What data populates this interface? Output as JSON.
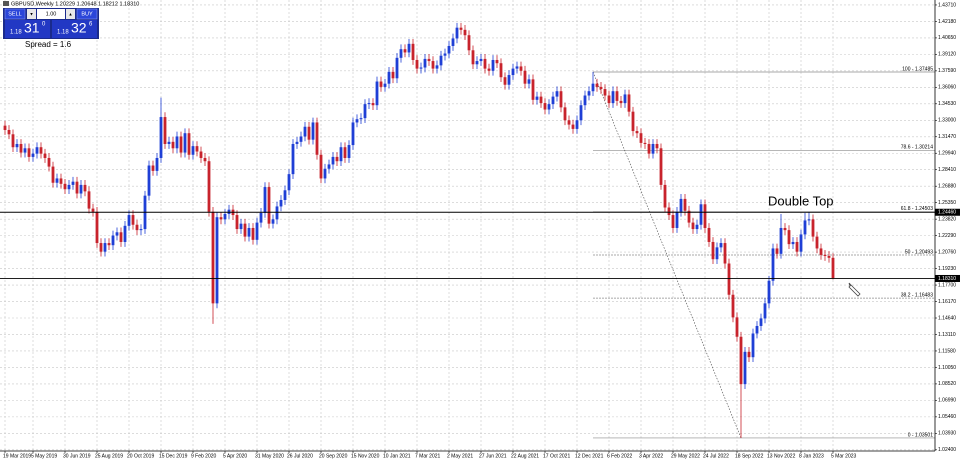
{
  "chart_data": {
    "type": "candlestick",
    "title": "GBPUSD,Weekly  1.20229 1.20648 1.18212 1.18310",
    "annotation": "Double Top",
    "up_color": "#1f3fd6",
    "down_color": "#c8232c",
    "grid": true,
    "categories": [
      "19 Mar 2019",
      null,
      null,
      null,
      null,
      null,
      null,
      "5 May 2019",
      null,
      null,
      null,
      null,
      null,
      null,
      null,
      "30 Jun 2019",
      null,
      null,
      null,
      null,
      null,
      null,
      null,
      "25 Aug 2019",
      null,
      null,
      null,
      null,
      null,
      null,
      null,
      "20 Oct 2019",
      null,
      null,
      null,
      null,
      null,
      null,
      null,
      "15 Dec 2019",
      null,
      null,
      null,
      null,
      null,
      null,
      null,
      "9 Feb 2020",
      null,
      null,
      null,
      null,
      null,
      null,
      null,
      "5 Apr 2020",
      null,
      null,
      null,
      null,
      null,
      null,
      null,
      "31 May 2020",
      null,
      null,
      null,
      null,
      null,
      null,
      null,
      "26 Jul 2020",
      null,
      null,
      null,
      null,
      null,
      null,
      null,
      "20 Sep 2020",
      null,
      null,
      null,
      null,
      null,
      null,
      null,
      "15 Nov 2020",
      null,
      null,
      null,
      null,
      null,
      null,
      null,
      "10 Jan 2021",
      null,
      null,
      null,
      null,
      null,
      null,
      null,
      "7 Mar 2021",
      null,
      null,
      null,
      null,
      null,
      null,
      null,
      "2 May 2021",
      null,
      null,
      null,
      null,
      null,
      null,
      null,
      "27 Jun 2021",
      null,
      null,
      null,
      null,
      null,
      null,
      null,
      "22 Aug 2021",
      null,
      null,
      null,
      null,
      null,
      null,
      null,
      "17 Oct 2021",
      null,
      null,
      null,
      null,
      null,
      null,
      null,
      "12 Dec 2021",
      null,
      null,
      null,
      null,
      null,
      null,
      null,
      "6 Feb 2022",
      null,
      null,
      null,
      null,
      null,
      null,
      null,
      "3 Apr 2022",
      null,
      null,
      null,
      null,
      null,
      null,
      null,
      "29 May 2022",
      null,
      null,
      null,
      null,
      null,
      null,
      null,
      "24 Jul 2022",
      null,
      null,
      null,
      null,
      null,
      null,
      null,
      "18 Sep 2022",
      null,
      null,
      null,
      null,
      null,
      null,
      null,
      "13 Nov 2022",
      null,
      null,
      null,
      null,
      null,
      null,
      null,
      "8 Jan 2023",
      null,
      null,
      null,
      null,
      null,
      null,
      null,
      "5 Mar 2023"
    ],
    "open": [
      1.325,
      1.321,
      1.317,
      1.305,
      1.308,
      1.3,
      1.304,
      1.296,
      1.299,
      1.305,
      1.299,
      1.295,
      1.287,
      1.272,
      1.276,
      1.271,
      1.266,
      1.27,
      1.273,
      1.262,
      1.27,
      1.264,
      1.248,
      1.245,
      1.216,
      1.208,
      1.216,
      1.214,
      1.223,
      1.226,
      1.217,
      1.232,
      1.242,
      1.233,
      1.228,
      1.229,
      1.26,
      1.288,
      1.283,
      1.295,
      1.333,
      1.308,
      1.31,
      1.304,
      1.315,
      1.3,
      1.318,
      1.298,
      1.306,
      1.301,
      1.295,
      1.292,
      1.245,
      1.16,
      1.24,
      1.238,
      1.243,
      1.247,
      1.242,
      1.229,
      1.234,
      1.222,
      1.23,
      1.219,
      1.235,
      1.244,
      1.268,
      1.234,
      1.238,
      1.25,
      1.256,
      1.265,
      1.28,
      1.308,
      1.31,
      1.315,
      1.324,
      1.312,
      1.328,
      1.298,
      1.276,
      1.285,
      1.289,
      1.296,
      1.292,
      1.305,
      1.295,
      1.307,
      1.328,
      1.331,
      1.332,
      1.345,
      1.346,
      1.344,
      1.366,
      1.361,
      1.364,
      1.375,
      1.369,
      1.388,
      1.396,
      1.393,
      1.401,
      1.386,
      1.378,
      1.379,
      1.387,
      1.385,
      1.378,
      1.381,
      1.39,
      1.392,
      1.399,
      1.406,
      1.416,
      1.414,
      1.409,
      1.395,
      1.382,
      1.385,
      1.387,
      1.378,
      1.376,
      1.386,
      1.383,
      1.37,
      1.363,
      1.372,
      1.378,
      1.38,
      1.376,
      1.364,
      1.368,
      1.349,
      1.352,
      1.346,
      1.34,
      1.345,
      1.352,
      1.357,
      1.342,
      1.33,
      1.326,
      1.322,
      1.33,
      1.344,
      1.353,
      1.357,
      1.364,
      1.361,
      1.359,
      1.353,
      1.346,
      1.357,
      1.348,
      1.346,
      1.354,
      1.338,
      1.32,
      1.318,
      1.309,
      1.308,
      1.299,
      1.308,
      1.304,
      1.27,
      1.249,
      1.242,
      1.23,
      1.245,
      1.257,
      1.246,
      1.235,
      1.229,
      1.233,
      1.252,
      1.23,
      1.217,
      1.201,
      1.212,
      1.216,
      1.197,
      1.168,
      1.147,
      1.129,
      1.085,
      1.115,
      1.11,
      1.132,
      1.139,
      1.146,
      1.16,
      1.181,
      1.211,
      1.206,
      1.23,
      1.228,
      1.215,
      1.217,
      1.208,
      1.224,
      1.237,
      1.238,
      1.222,
      1.211,
      1.205,
      1.204,
      1.2023
    ],
    "high": [
      1.3295,
      1.3255,
      1.3215,
      1.3125,
      1.3125,
      1.3085,
      1.3085,
      1.3035,
      1.3095,
      1.3095,
      1.3035,
      1.2995,
      1.2915,
      1.2805,
      1.2805,
      1.2755,
      1.2745,
      1.2775,
      1.2775,
      1.2745,
      1.2745,
      1.2685,
      1.2525,
      1.2495,
      1.2205,
      1.2205,
      1.2205,
      1.2275,
      1.2305,
      1.2305,
      1.2365,
      1.2465,
      1.2465,
      1.2375,
      1.2335,
      1.2645,
      1.2925,
      1.2925,
      1.2995,
      1.351,
      1.3375,
      1.3145,
      1.3145,
      1.3195,
      1.3195,
      1.3225,
      1.3225,
      1.3105,
      1.3105,
      1.3055,
      1.2995,
      1.2965,
      1.2495,
      1.2445,
      1.2445,
      1.2475,
      1.2515,
      1.2515,
      1.2465,
      1.2385,
      1.2385,
      1.2345,
      1.2345,
      1.2395,
      1.2485,
      1.2725,
      1.2725,
      1.2425,
      1.2545,
      1.2605,
      1.2695,
      1.2845,
      1.3125,
      1.3145,
      1.3195,
      1.3285,
      1.3285,
      1.3325,
      1.3325,
      1.3025,
      1.2895,
      1.2935,
      1.3005,
      1.3005,
      1.3095,
      1.3095,
      1.3115,
      1.3325,
      1.3355,
      1.3365,
      1.3495,
      1.3505,
      1.3505,
      1.3705,
      1.3705,
      1.3685,
      1.3795,
      1.3795,
      1.3925,
      1.4005,
      1.4005,
      1.4055,
      1.4055,
      1.3905,
      1.3835,
      1.3915,
      1.3915,
      1.3895,
      1.3855,
      1.3945,
      1.3965,
      1.4035,
      1.4105,
      1.4205,
      1.4205,
      1.4185,
      1.4135,
      1.3995,
      1.3895,
      1.3915,
      1.3915,
      1.3825,
      1.3905,
      1.3905,
      1.3875,
      1.3745,
      1.3765,
      1.3825,
      1.3845,
      1.3845,
      1.3805,
      1.3725,
      1.3725,
      1.3565,
      1.3565,
      1.3505,
      1.3495,
      1.3565,
      1.3615,
      1.3615,
      1.3465,
      1.3345,
      1.3305,
      1.3345,
      1.3485,
      1.3575,
      1.3615,
      1.3749,
      1.3685,
      1.3655,
      1.3635,
      1.3575,
      1.3615,
      1.3615,
      1.3525,
      1.3585,
      1.3585,
      1.3425,
      1.3245,
      1.3225,
      1.3135,
      1.3125,
      1.3125,
      1.3125,
      1.3085,
      1.2745,
      1.2535,
      1.2465,
      1.2495,
      1.2615,
      1.2615,
      1.2505,
      1.2395,
      1.2375,
      1.2565,
      1.2565,
      1.2345,
      1.2215,
      1.2165,
      1.2205,
      1.2205,
      1.2015,
      1.1725,
      1.1515,
      1.1335,
      1.1195,
      1.1195,
      1.1365,
      1.1435,
      1.1505,
      1.1645,
      1.1855,
      1.2155,
      1.2155,
      1.243,
      1.2345,
      1.2325,
      1.2215,
      1.2215,
      1.2285,
      1.244,
      1.2446,
      1.2425,
      1.2265,
      1.2155,
      1.2095,
      1.2085,
      1.2065
    ],
    "low": [
      1.3165,
      1.3125,
      1.3005,
      1.3005,
      1.2955,
      1.2955,
      1.2915,
      1.2915,
      1.2945,
      1.2945,
      1.2905,
      1.2825,
      1.2675,
      1.2675,
      1.2665,
      1.2615,
      1.2615,
      1.2655,
      1.2575,
      1.2575,
      1.2595,
      1.2435,
      1.2405,
      1.2115,
      1.2035,
      1.2035,
      1.2095,
      1.2095,
      1.2185,
      1.2125,
      1.2125,
      1.2275,
      1.2285,
      1.2235,
      1.2235,
      1.2245,
      1.2555,
      1.2785,
      1.2785,
      1.2905,
      1.3035,
      1.3035,
      1.2995,
      1.2995,
      1.2955,
      1.2955,
      1.2935,
      1.2935,
      1.2965,
      1.2905,
      1.2875,
      1.2405,
      1.141,
      1.1555,
      1.2335,
      1.2335,
      1.2385,
      1.2375,
      1.2245,
      1.2245,
      1.2175,
      1.2175,
      1.2145,
      1.2145,
      1.2305,
      1.2395,
      1.2295,
      1.2295,
      1.2335,
      1.2455,
      1.2515,
      1.2605,
      1.2755,
      1.3035,
      1.3055,
      1.3105,
      1.3075,
      1.3075,
      1.2935,
      1.2715,
      1.2715,
      1.2805,
      1.2845,
      1.2875,
      1.2875,
      1.2905,
      1.2905,
      1.3025,
      1.3235,
      1.3265,
      1.3275,
      1.3405,
      1.3395,
      1.3395,
      1.3565,
      1.3565,
      1.3595,
      1.3645,
      1.3645,
      1.3835,
      1.3885,
      1.3885,
      1.3815,
      1.3735,
      1.3735,
      1.3745,
      1.3805,
      1.3735,
      1.3735,
      1.3765,
      1.3855,
      1.3875,
      1.3945,
      1.4015,
      1.4095,
      1.4045,
      1.3905,
      1.3775,
      1.3775,
      1.3805,
      1.3735,
      1.3715,
      1.3715,
      1.3785,
      1.3655,
      1.3585,
      1.3585,
      1.3675,
      1.3735,
      1.3715,
      1.3595,
      1.3595,
      1.3445,
      1.3445,
      1.3415,
      1.3355,
      1.3355,
      1.3405,
      1.3475,
      1.3375,
      1.3255,
      1.3215,
      1.3175,
      1.3175,
      1.3255,
      1.3395,
      1.3485,
      1.3525,
      1.3565,
      1.3545,
      1.3485,
      1.3415,
      1.3415,
      1.3435,
      1.3415,
      1.3415,
      1.3335,
      1.3155,
      1.3135,
      1.3045,
      1.3035,
      1.2945,
      1.2945,
      1.2995,
      1.2655,
      1.2445,
      1.2375,
      1.2255,
      1.2255,
      1.2405,
      1.2415,
      1.2305,
      1.2245,
      1.2245,
      1.2285,
      1.2255,
      1.2125,
      1.1965,
      1.1965,
      1.2075,
      1.1925,
      1.1635,
      1.1425,
      1.1245,
      1.035,
      1.0805,
      1.1055,
      1.1055,
      1.1275,
      1.1345,
      1.1415,
      1.1555,
      1.1765,
      1.2015,
      1.2015,
      1.2235,
      1.2105,
      1.2105,
      1.2035,
      1.2035,
      1.2195,
      1.2325,
      1.2175,
      1.2065,
      1.2005,
      1.1995,
      1.1978,
      1.1821
    ],
    "close": [
      1.321,
      1.317,
      1.305,
      1.308,
      1.3,
      1.304,
      1.296,
      1.299,
      1.305,
      1.299,
      1.295,
      1.287,
      1.272,
      1.276,
      1.271,
      1.266,
      1.27,
      1.273,
      1.262,
      1.27,
      1.264,
      1.248,
      1.245,
      1.216,
      1.208,
      1.216,
      1.214,
      1.223,
      1.226,
      1.217,
      1.232,
      1.242,
      1.233,
      1.228,
      1.229,
      1.26,
      1.288,
      1.283,
      1.295,
      1.333,
      1.308,
      1.31,
      1.304,
      1.315,
      1.3,
      1.318,
      1.298,
      1.306,
      1.301,
      1.295,
      1.292,
      1.245,
      1.16,
      1.24,
      1.238,
      1.243,
      1.247,
      1.242,
      1.229,
      1.234,
      1.222,
      1.23,
      1.219,
      1.235,
      1.244,
      1.268,
      1.234,
      1.238,
      1.25,
      1.256,
      1.265,
      1.28,
      1.308,
      1.31,
      1.315,
      1.324,
      1.312,
      1.328,
      1.298,
      1.276,
      1.285,
      1.289,
      1.296,
      1.292,
      1.305,
      1.295,
      1.307,
      1.328,
      1.331,
      1.332,
      1.345,
      1.346,
      1.344,
      1.366,
      1.361,
      1.364,
      1.375,
      1.369,
      1.388,
      1.396,
      1.393,
      1.401,
      1.386,
      1.378,
      1.379,
      1.387,
      1.385,
      1.378,
      1.381,
      1.39,
      1.392,
      1.399,
      1.406,
      1.416,
      1.414,
      1.409,
      1.395,
      1.382,
      1.385,
      1.387,
      1.378,
      1.376,
      1.386,
      1.383,
      1.37,
      1.363,
      1.372,
      1.378,
      1.38,
      1.376,
      1.364,
      1.368,
      1.349,
      1.352,
      1.346,
      1.34,
      1.345,
      1.352,
      1.357,
      1.342,
      1.33,
      1.326,
      1.322,
      1.33,
      1.344,
      1.353,
      1.357,
      1.364,
      1.361,
      1.359,
      1.353,
      1.346,
      1.357,
      1.348,
      1.346,
      1.354,
      1.338,
      1.32,
      1.318,
      1.309,
      1.308,
      1.299,
      1.308,
      1.304,
      1.27,
      1.249,
      1.242,
      1.23,
      1.245,
      1.257,
      1.246,
      1.235,
      1.229,
      1.233,
      1.252,
      1.23,
      1.217,
      1.201,
      1.212,
      1.216,
      1.197,
      1.168,
      1.147,
      1.129,
      1.085,
      1.115,
      1.11,
      1.132,
      1.139,
      1.146,
      1.16,
      1.181,
      1.211,
      1.206,
      1.23,
      1.228,
      1.215,
      1.217,
      1.208,
      1.224,
      1.237,
      1.238,
      1.222,
      1.211,
      1.205,
      1.204,
      1.2023,
      1.1831
    ],
    "ylim": [
      1.0229,
      1.4417
    ],
    "yticks": [
      {
        "value": 1.4371,
        "label": "1.43710"
      },
      {
        "value": 1.4218,
        "label": "1.42180"
      },
      {
        "value": 1.4065,
        "label": "1.40650"
      },
      {
        "value": 1.3912,
        "label": "1.39120"
      },
      {
        "value": 1.3759,
        "label": "1.37590"
      },
      {
        "value": 1.3606,
        "label": "1.36060"
      },
      {
        "value": 1.3453,
        "label": "1.34530"
      },
      {
        "value": 1.33,
        "label": "1.33000"
      },
      {
        "value": 1.3147,
        "label": "1.31470"
      },
      {
        "value": 1.2994,
        "label": "1.29940"
      },
      {
        "value": 1.2841,
        "label": "1.28410"
      },
      {
        "value": 1.2688,
        "label": "1.26880"
      },
      {
        "value": 1.2535,
        "label": "1.25350"
      },
      {
        "value": 1.2382,
        "label": "1.23820"
      },
      {
        "value": 1.2229,
        "label": "1.22290"
      },
      {
        "value": 1.2076,
        "label": "1.20760"
      },
      {
        "value": 1.1923,
        "label": "1.19230"
      },
      {
        "value": 1.177,
        "label": "1.17700"
      },
      {
        "value": 1.1617,
        "label": "1.16170"
      },
      {
        "value": 1.1464,
        "label": "1.14640"
      },
      {
        "value": 1.1311,
        "label": "1.13110"
      },
      {
        "value": 1.1158,
        "label": "1.11580"
      },
      {
        "value": 1.1005,
        "label": "1.10050"
      },
      {
        "value": 1.0852,
        "label": "1.08520"
      },
      {
        "value": 1.0699,
        "label": "1.06990"
      },
      {
        "value": 1.0546,
        "label": "1.05460"
      },
      {
        "value": 1.0393,
        "label": "1.03930"
      },
      {
        "value": 1.024,
        "label": "1.02400"
      }
    ],
    "hlines": [
      {
        "value": 1.2446,
        "label": "1.24460"
      },
      {
        "value": 1.1831,
        "label": "1.18310"
      }
    ],
    "fib_levels": [
      {
        "value": 1.37485,
        "label": "100 - 1.37485"
      },
      {
        "value": 1.30214,
        "label": "78.6 - 1.30214"
      },
      {
        "value": 1.24503,
        "label": "61.8 - 1.24503"
      },
      {
        "value": 1.20493,
        "label": "50 - 1.20493"
      },
      {
        "value": 1.16483,
        "label": "38.2 - 1.16483"
      },
      {
        "value": 1.03501,
        "label": "0 - 1.03501"
      }
    ],
    "trade_panel": {
      "sell": "SELL",
      "lot": "1.00",
      "buy": "BUY",
      "bid_big": "1.18",
      "bid_main": "31",
      "bid_pip": "0",
      "ask_big": "1.18",
      "ask_main": "32",
      "ask_pip": "6",
      "spread": "Spread = 1.6"
    }
  }
}
